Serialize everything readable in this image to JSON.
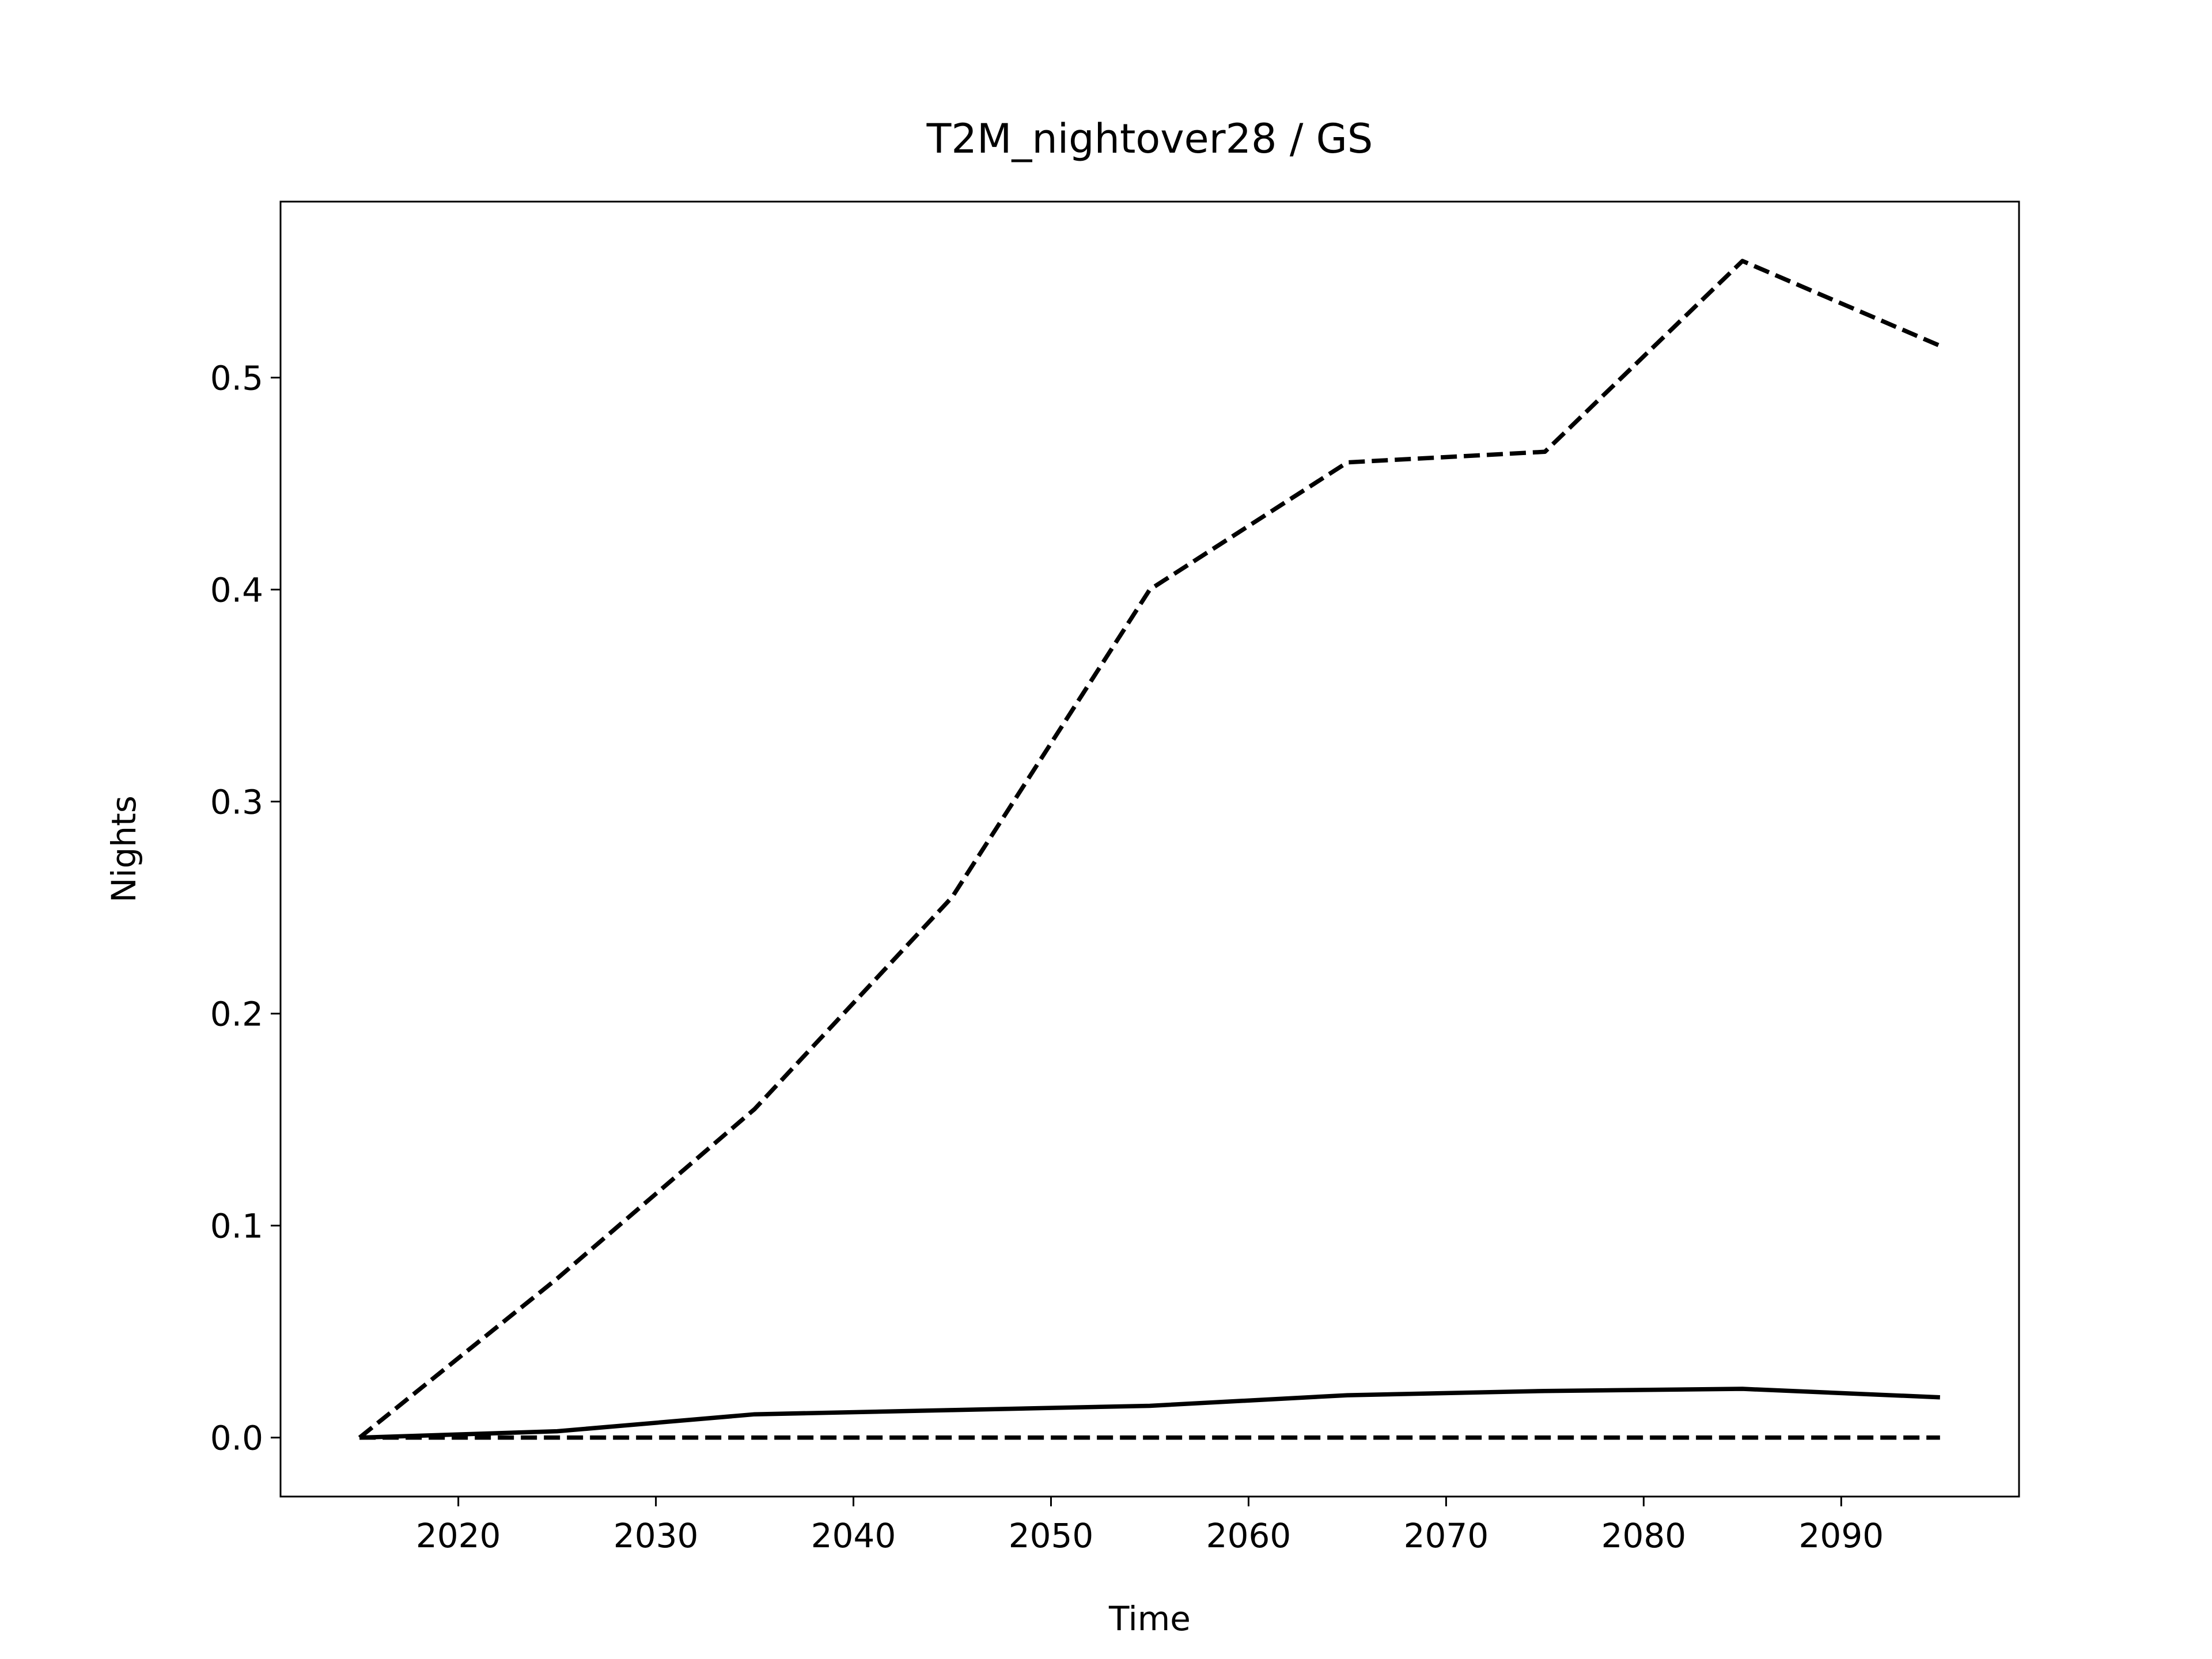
{
  "chart_data": {
    "type": "line",
    "title": "T2M_nightover28 / GS",
    "x_label": "Time",
    "y_label": "Nights",
    "x": [
      2015,
      2025,
      2035,
      2045,
      2055,
      2065,
      2075,
      2085,
      2095
    ],
    "series": [
      {
        "color": "#000000",
        "linestyle": "dashed",
        "values": [
          0,
          0.075,
          0.155,
          0.255,
          0.4,
          0.46,
          0.465,
          0.555,
          0.515
        ]
      },
      {
        "color": "#000000",
        "linestyle": "solid",
        "values": [
          0,
          0.003,
          0.011,
          0.013,
          0.015,
          0.02,
          0.022,
          0.023,
          0.019
        ]
      },
      {
        "color": "#000000",
        "linestyle": "dashed",
        "values": [
          0,
          0,
          0,
          0,
          0,
          0,
          0,
          0,
          0
        ]
      }
    ],
    "xlim": [
      2011,
      2099
    ],
    "ylim": [
      -0.0278,
      0.583
    ],
    "xticks": [
      2020,
      2030,
      2040,
      2050,
      2060,
      2070,
      2080,
      2090
    ],
    "yticks": [
      {
        "value": 0,
        "label": "0.0"
      },
      0.1,
      0.2,
      0.3,
      0.4,
      0.5
    ],
    "grid": false
  }
}
